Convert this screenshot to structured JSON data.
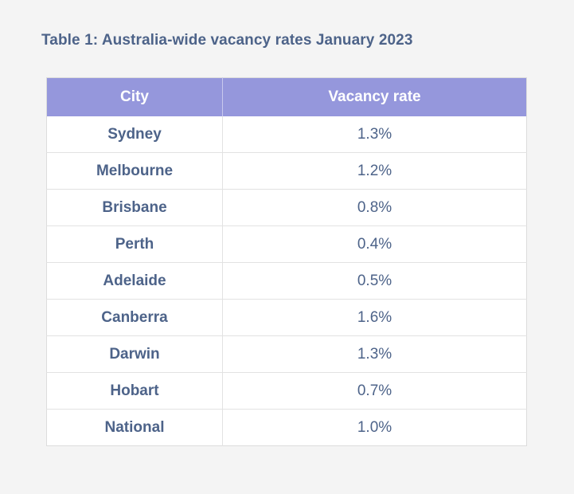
{
  "title": "Table 1: Australia-wide vacancy rates January 2023",
  "table": {
    "headers": [
      "City",
      "Vacancy rate"
    ],
    "rows": [
      {
        "city": "Sydney",
        "rate": "1.3%"
      },
      {
        "city": "Melbourne",
        "rate": "1.2%"
      },
      {
        "city": "Brisbane",
        "rate": "0.8%"
      },
      {
        "city": "Perth",
        "rate": "0.4%"
      },
      {
        "city": "Adelaide",
        "rate": "0.5%"
      },
      {
        "city": "Canberra",
        "rate": "1.6%"
      },
      {
        "city": "Darwin",
        "rate": "1.3%"
      },
      {
        "city": "Hobart",
        "rate": "0.7%"
      },
      {
        "city": "National",
        "rate": "1.0%"
      }
    ]
  },
  "colors": {
    "header_bg": "#9597dc",
    "text": "#4d6389",
    "page_bg": "#f4f4f4"
  }
}
